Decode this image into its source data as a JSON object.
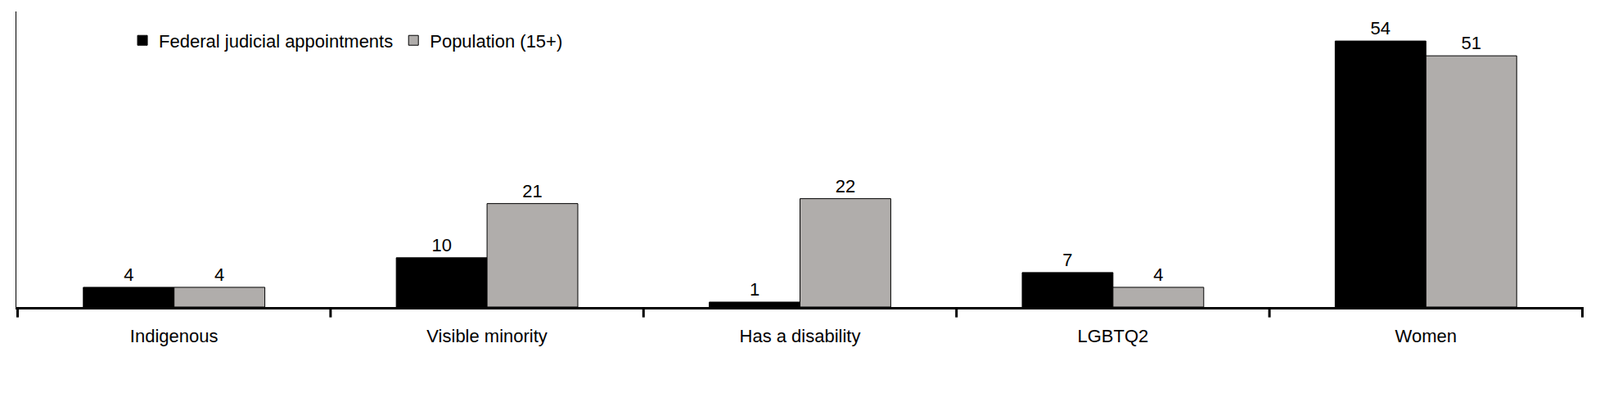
{
  "chart_data": {
    "type": "bar",
    "categories": [
      "Indigenous",
      "Visible minority",
      "Has a disability",
      "LGBTQ2",
      "Women"
    ],
    "series": [
      {
        "name": "Federal judicial appointments",
        "color": "#000000",
        "values": [
          4,
          10,
          1,
          7,
          54
        ]
      },
      {
        "name": "Population (15+)",
        "color": "#b0adab",
        "values": [
          4,
          21,
          22,
          4,
          51
        ]
      }
    ],
    "ylim": [
      0,
      60
    ],
    "data_labels": true,
    "tick_labels": "x",
    "grid": false,
    "legend": "top left"
  }
}
